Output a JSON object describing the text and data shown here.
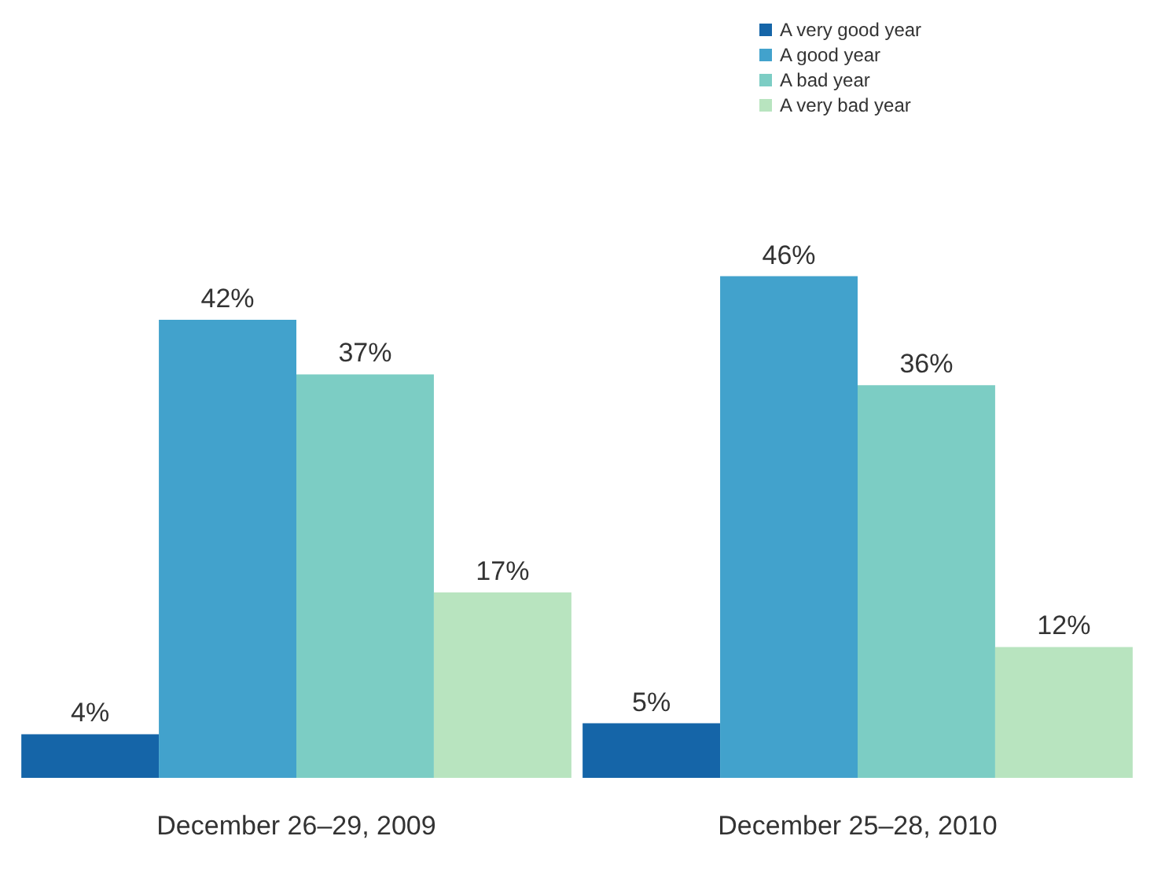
{
  "chart_data": {
    "type": "bar",
    "categories": [
      "December 26–29, 2009",
      "December 25–28, 2010"
    ],
    "series": [
      {
        "name": "A very good year",
        "color": "#1565a8",
        "values": [
          4,
          5
        ],
        "value_labels": [
          "4%",
          "5%"
        ]
      },
      {
        "name": "A good year",
        "color": "#42a2cc",
        "values": [
          42,
          46
        ],
        "value_labels": [
          "42%",
          "46%"
        ]
      },
      {
        "name": "A bad year",
        "color": "#7ccdc4",
        "values": [
          37,
          36
        ],
        "value_labels": [
          "37%",
          "36%"
        ]
      },
      {
        "name": "A very bad year",
        "color": "#b8e4bf",
        "values": [
          17,
          12
        ],
        "value_labels": [
          "17%",
          "12%"
        ]
      }
    ],
    "legend": "top right",
    "grid": false
  }
}
